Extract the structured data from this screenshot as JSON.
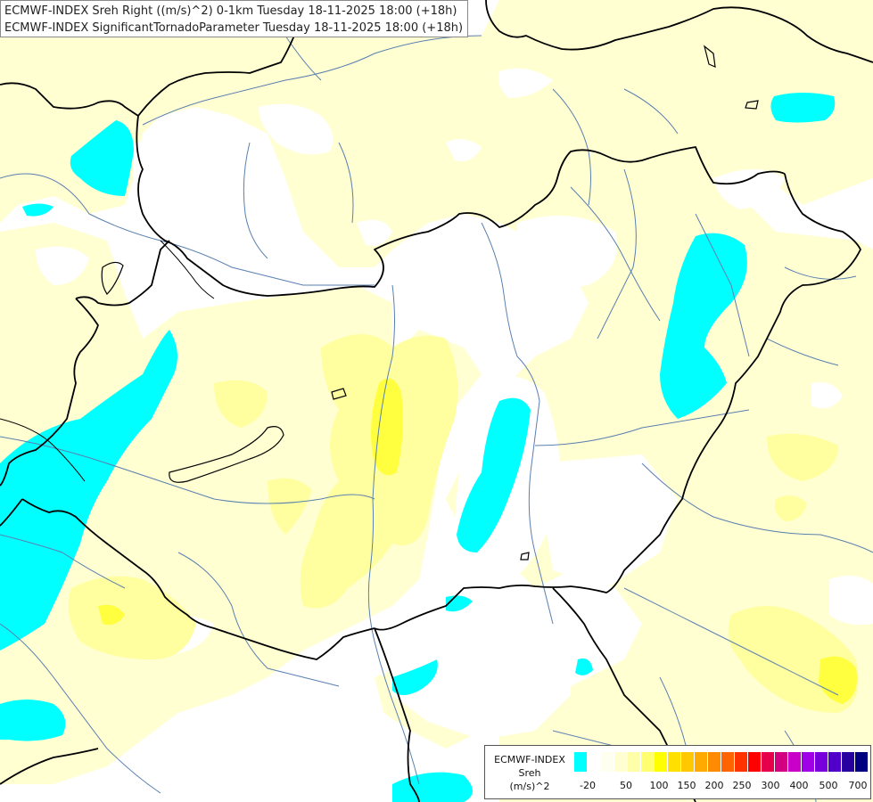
{
  "header": {
    "line1": "ECMWF-INDEX Sreh Right ((m/s)^2) 0-1km Tuesday 18-11-2025 18:00 (+18h)",
    "line2": "ECMWF-INDEX SignificantTornadoParameter Tuesday 18-11-2025 18:00 (+18h)"
  },
  "legend": {
    "line1": "ECMWF-INDEX",
    "line2": "Sreh",
    "line3": "(m/s)^2",
    "tick_labels": [
      "-20",
      "50",
      "100",
      "150",
      "200",
      "250",
      "300",
      "400",
      "500",
      "700"
    ],
    "colors": [
      "#00ffff",
      "#ffffff",
      "#fffff0",
      "#ffffd2",
      "#ffffaa",
      "#ffff70",
      "#ffff00",
      "#ffe000",
      "#ffc800",
      "#ffaa00",
      "#ff8c00",
      "#ff6400",
      "#ff3200",
      "#ff0000",
      "#e6004c",
      "#d20080",
      "#c800c8",
      "#a000e6",
      "#7800dc",
      "#5000c8",
      "#2800a0",
      "#000080"
    ]
  },
  "map": {
    "palette": {
      "background": "#ffffff",
      "light_yellow": "#ffffd2",
      "yellow": "#ffffa0",
      "strong_yellow": "#ffff40",
      "cyan": "#00ffff",
      "rivers": "#5a7fb0",
      "borders": "#000000"
    }
  }
}
